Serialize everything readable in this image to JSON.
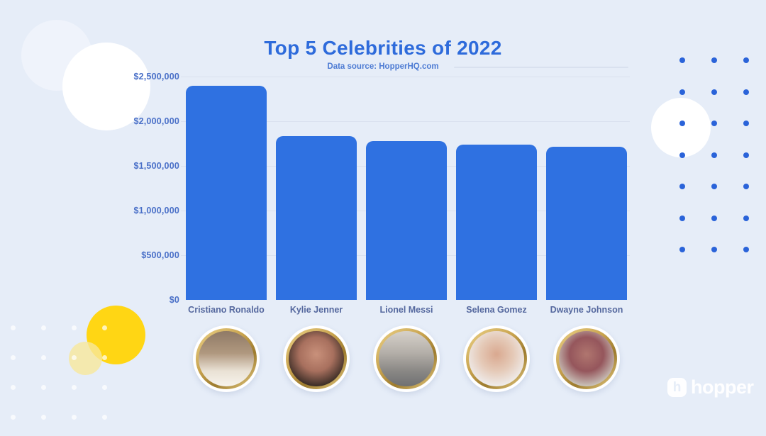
{
  "page": {
    "title": "Top 5 Celebrities of 2022",
    "subtitle": "Data source: HopperHQ.com"
  },
  "chart_data": {
    "type": "bar",
    "title": "Top 5 Celebrities of 2022",
    "subtitle": "Data source: HopperHQ.com",
    "categories": [
      "Cristiano Ronaldo",
      "Kylie Jenner",
      "Lionel Messi",
      "Selena Gomez",
      "Dwayne Johnson"
    ],
    "values": [
      2397000,
      1835000,
      1777000,
      1735000,
      1713000
    ],
    "value_unit": "USD",
    "ylim": [
      0,
      2500000
    ],
    "ytick_labels": [
      "$2,500,000",
      "$2,000,000",
      "$1,500,000",
      "$1,000,000",
      "$500,000",
      "$0"
    ],
    "grid": true,
    "legend": false,
    "bar_color": "#2F71E1"
  },
  "avatars": [
    {
      "name": "avatar-cristiano-ronaldo",
      "person": "Cristiano Ronaldo",
      "photo_style": "linear",
      "photo_colors": [
        "#8F7A66",
        "#B0987F",
        "#E9E1D4",
        "#F7F3EC"
      ]
    },
    {
      "name": "avatar-kylie-jenner",
      "person": "Kylie Jenner",
      "photo_style": "radial",
      "photo_colors": [
        "#C9917B",
        "#A8705E",
        "#3B2D26",
        "#201813"
      ]
    },
    {
      "name": "avatar-lionel-messi",
      "person": "Lionel Messi",
      "photo_style": "linear",
      "photo_colors": [
        "#D6D1CA",
        "#B3AEA8",
        "#8A8885",
        "#6F7072"
      ]
    },
    {
      "name": "avatar-selena-gomez",
      "person": "Selena Gomez",
      "photo_style": "radial",
      "photo_colors": [
        "#D9A88F",
        "#E5CAB8",
        "#EFECEB",
        "#F2F0EF"
      ]
    },
    {
      "name": "avatar-dwayne-johnson",
      "person": "Dwayne Johnson",
      "photo_style": "radial",
      "photo_colors": [
        "#B0766F",
        "#95565C",
        "#C9C2B9",
        "#D8D3CB"
      ]
    }
  ],
  "brand": {
    "logo_text": "hopper",
    "logo_icon_letter": "h"
  },
  "colors": {
    "background": "#E6EDF8",
    "bar": "#2F71E1",
    "title_text": "#2E6BDB",
    "subtitle_text": "#4D7BD3",
    "y_tick_text": "#4A70C8",
    "category_text": "#55689E",
    "gridline": "#D9E1EF",
    "dot_blue": "#2A63D9",
    "dot_white": "rgba(255,255,255,0.7)",
    "circle_yellow": "#FFD614",
    "circle_pale_yellow": "rgba(247,231,155,0.8)",
    "circle_faint": "#EFF3FB",
    "gold_light": "#ECD289",
    "gold_mid": "#C9A44F",
    "gold_dark": "#9D7B2E",
    "logo_white": "rgba(255,255,255,0.93)"
  }
}
